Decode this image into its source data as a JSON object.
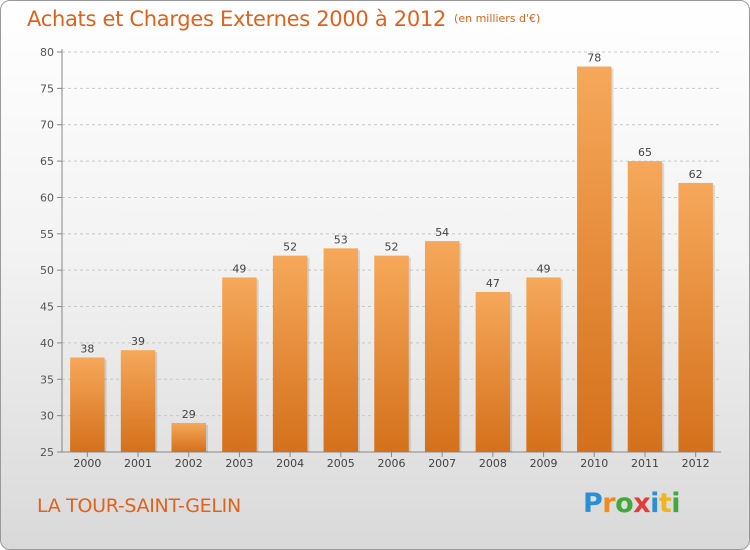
{
  "header": {
    "title": "Achats et Charges Externes 2000 à 2012",
    "subtitle": "(en milliers d'€)"
  },
  "footer": {
    "town": "LA TOUR-SAINT-GELIN",
    "logo": "Proxiti"
  },
  "colors": {
    "bar_light": "#f6a85a",
    "bar_dark": "#d4701c",
    "title": "#e0621c",
    "grid": "#c8c8c8"
  },
  "chart_data": {
    "type": "bar",
    "title": "Achats et Charges Externes 2000 à 2012",
    "subtitle": "(en milliers d'€)",
    "categories": [
      "2000",
      "2001",
      "2002",
      "2003",
      "2004",
      "2005",
      "2006",
      "2007",
      "2008",
      "2009",
      "2010",
      "2011",
      "2012"
    ],
    "values": [
      38,
      39,
      29,
      49,
      52,
      53,
      52,
      54,
      47,
      49,
      78,
      65,
      62
    ],
    "data_labels": [
      "38",
      "39",
      "29",
      "49",
      "52",
      "53",
      "52",
      "54",
      "47",
      "49",
      "78",
      "65",
      "62"
    ],
    "ylim": [
      25,
      80
    ],
    "yticks": [
      25,
      30,
      35,
      40,
      45,
      50,
      55,
      60,
      65,
      70,
      75,
      80
    ],
    "ytick_labels": [
      "25",
      "30",
      "35",
      "40",
      "45",
      "50",
      "55",
      "60",
      "65",
      "70",
      "75",
      "80"
    ],
    "grid": true,
    "legend": "none"
  }
}
